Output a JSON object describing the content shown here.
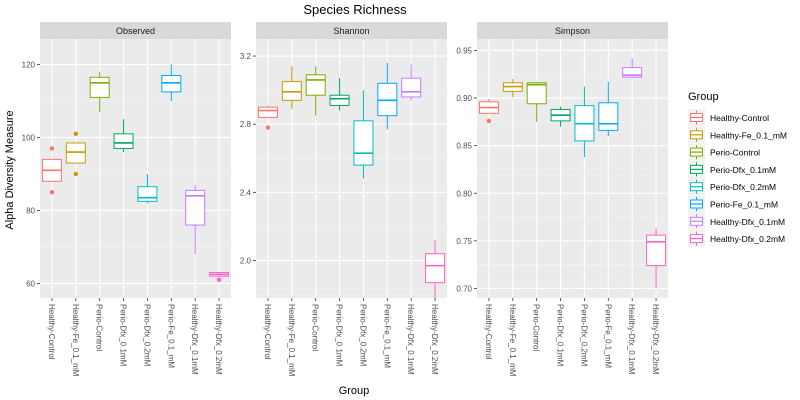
{
  "chart_data": {
    "type": "boxplot",
    "title": "Species Richness",
    "xlabel": "Group",
    "ylabel": "Alpha Diversity Measure",
    "legend": {
      "title": "Group",
      "placement": "right"
    },
    "grid": true,
    "groups": [
      {
        "name": "Healthy-Control",
        "color": "#F8766D"
      },
      {
        "name": "Healthy-Fe_0.1_mM",
        "color": "#C49A00"
      },
      {
        "name": "Perio-Control",
        "color": "#7CAE00"
      },
      {
        "name": "Perio-Dfx_0.1mM",
        "color": "#00A860"
      },
      {
        "name": "Perio-Dfx_0.2mM",
        "color": "#00BFC4"
      },
      {
        "name": "Perio-Fe_0.1_mM",
        "color": "#00A9FF"
      },
      {
        "name": "Healthy-Dfx_0.1mM",
        "color": "#C77CFF"
      },
      {
        "name": "Healthy-Dfx_0.2mM",
        "color": "#FF61C3"
      }
    ],
    "panels": [
      {
        "title": "Observed",
        "ylim": [
          56,
          127
        ],
        "yticks": [
          60,
          80,
          100,
          120
        ],
        "ytick_labels": [
          "60",
          "80",
          "100",
          "120"
        ],
        "boxes": [
          {
            "whisker_low": 88,
            "q1": 88,
            "median": 91,
            "q3": 94,
            "whisker_high": 94,
            "outliers": [
              85,
              97
            ]
          },
          {
            "whisker_low": 93,
            "q1": 93,
            "median": 96,
            "q3": 98.5,
            "whisker_high": 98.5,
            "outliers": [
              90,
              101
            ]
          },
          {
            "whisker_low": 107,
            "q1": 111,
            "median": 115,
            "q3": 116.5,
            "whisker_high": 118,
            "outliers": []
          },
          {
            "whisker_low": 96,
            "q1": 97,
            "median": 98.5,
            "q3": 101,
            "whisker_high": 105,
            "outliers": []
          },
          {
            "whisker_low": 82,
            "q1": 82.5,
            "median": 83.5,
            "q3": 86.5,
            "whisker_high": 90,
            "outliers": []
          },
          {
            "whisker_low": 110,
            "q1": 112.5,
            "median": 115,
            "q3": 117,
            "whisker_high": 120,
            "outliers": []
          },
          {
            "whisker_low": 68,
            "q1": 76,
            "median": 84,
            "q3": 85.5,
            "whisker_high": 87,
            "outliers": []
          },
          {
            "whisker_low": 62,
            "q1": 62,
            "median": 62.5,
            "q3": 63,
            "whisker_high": 63,
            "outliers": [
              61
            ]
          }
        ]
      },
      {
        "title": "Shannon",
        "ylim": [
          1.78,
          3.3
        ],
        "yticks": [
          2.0,
          2.4,
          2.8,
          3.2
        ],
        "ytick_labels": [
          "2.0",
          "2.4",
          "2.8",
          "3.2"
        ],
        "boxes": [
          {
            "whisker_low": 2.84,
            "q1": 2.84,
            "median": 2.88,
            "q3": 2.9,
            "whisker_high": 2.91,
            "outliers": [
              2.78
            ]
          },
          {
            "whisker_low": 2.89,
            "q1": 2.94,
            "median": 2.99,
            "q3": 3.05,
            "whisker_high": 3.14,
            "outliers": []
          },
          {
            "whisker_low": 2.85,
            "q1": 2.97,
            "median": 3.06,
            "q3": 3.09,
            "whisker_high": 3.14,
            "outliers": []
          },
          {
            "whisker_low": 2.88,
            "q1": 2.91,
            "median": 2.95,
            "q3": 2.97,
            "whisker_high": 3.07,
            "outliers": []
          },
          {
            "whisker_low": 2.48,
            "q1": 2.56,
            "median": 2.63,
            "q3": 2.82,
            "whisker_high": 3.0,
            "outliers": []
          },
          {
            "whisker_low": 2.77,
            "q1": 2.85,
            "median": 2.94,
            "q3": 3.04,
            "whisker_high": 3.16,
            "outliers": []
          },
          {
            "whisker_low": 2.94,
            "q1": 2.96,
            "median": 2.99,
            "q3": 3.07,
            "whisker_high": 3.15,
            "outliers": []
          },
          {
            "whisker_low": 1.78,
            "q1": 1.87,
            "median": 1.97,
            "q3": 2.04,
            "whisker_high": 2.12,
            "outliers": []
          }
        ]
      },
      {
        "title": "Simpson",
        "ylim": [
          0.69,
          0.962
        ],
        "yticks": [
          0.7,
          0.75,
          0.8,
          0.85,
          0.9,
          0.95
        ],
        "ytick_labels": [
          "0.70",
          "0.75",
          "0.80",
          "0.85",
          "0.90",
          "0.95"
        ],
        "boxes": [
          {
            "whisker_low": 0.884,
            "q1": 0.884,
            "median": 0.89,
            "q3": 0.896,
            "whisker_high": 0.899,
            "outliers": [
              0.876
            ]
          },
          {
            "whisker_low": 0.901,
            "q1": 0.907,
            "median": 0.912,
            "q3": 0.916,
            "whisker_high": 0.92,
            "outliers": []
          },
          {
            "whisker_low": 0.875,
            "q1": 0.894,
            "median": 0.914,
            "q3": 0.916,
            "whisker_high": 0.917,
            "outliers": []
          },
          {
            "whisker_low": 0.87,
            "q1": 0.876,
            "median": 0.882,
            "q3": 0.888,
            "whisker_high": 0.891,
            "outliers": []
          },
          {
            "whisker_low": 0.838,
            "q1": 0.855,
            "median": 0.873,
            "q3": 0.892,
            "whisker_high": 0.912,
            "outliers": []
          },
          {
            "whisker_low": 0.86,
            "q1": 0.866,
            "median": 0.873,
            "q3": 0.895,
            "whisker_high": 0.917,
            "outliers": []
          },
          {
            "whisker_low": 0.921,
            "q1": 0.922,
            "median": 0.924,
            "q3": 0.932,
            "whisker_high": 0.942,
            "outliers": []
          },
          {
            "whisker_low": 0.7,
            "q1": 0.724,
            "median": 0.749,
            "q3": 0.756,
            "whisker_high": 0.763,
            "outliers": []
          }
        ]
      }
    ]
  }
}
